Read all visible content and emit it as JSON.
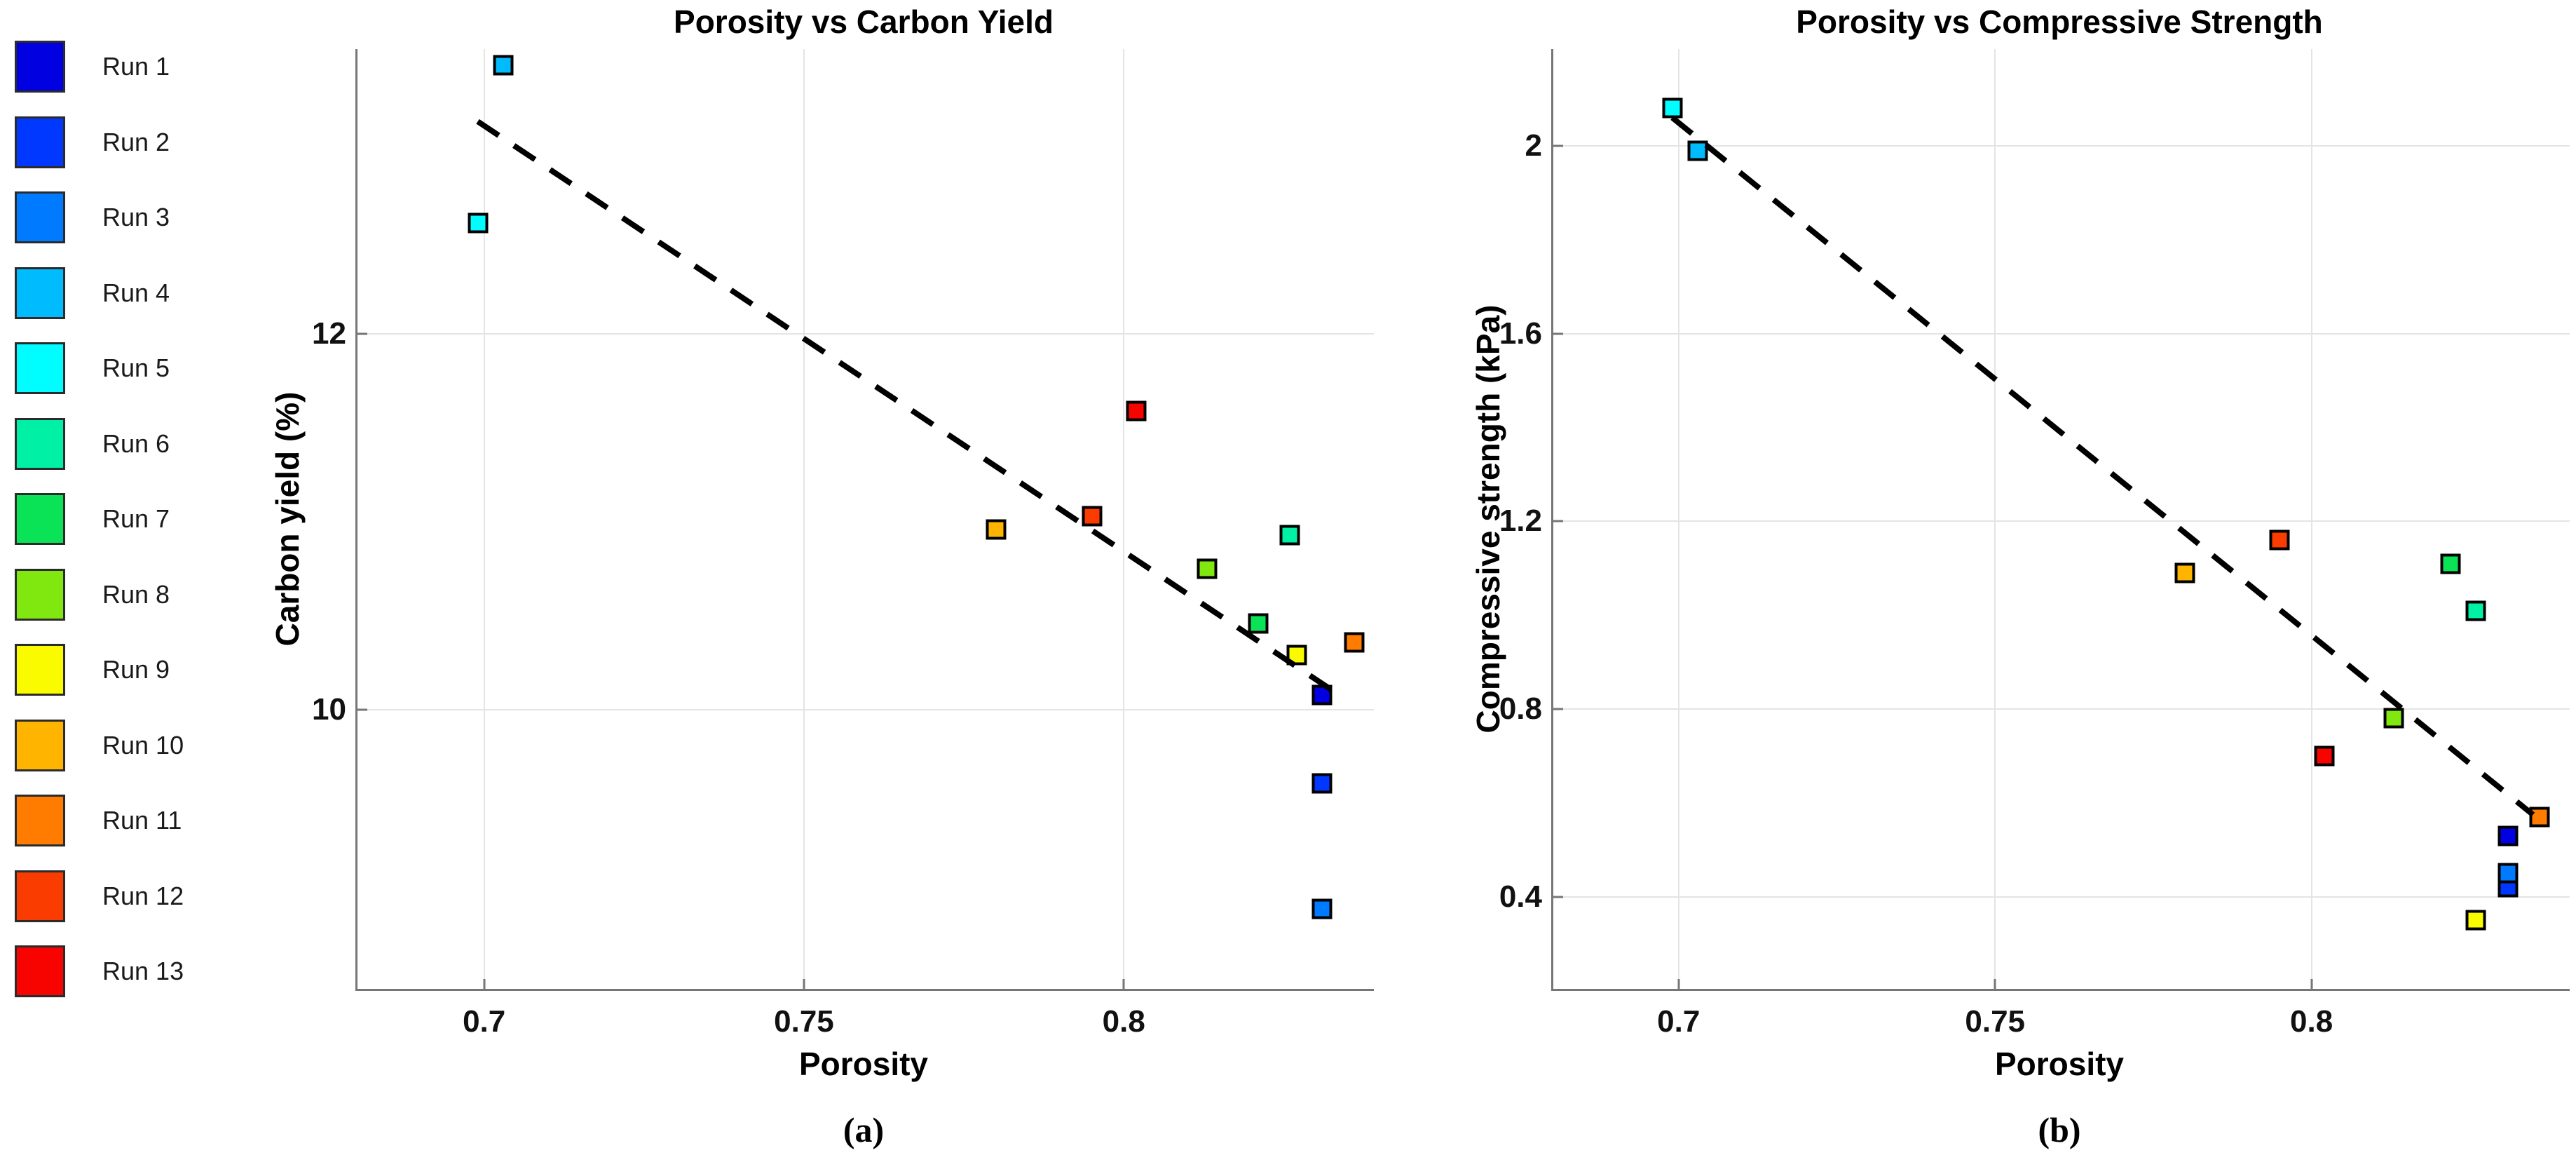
{
  "figure": {
    "background": "#ffffff",
    "axis_color": "#767676",
    "grid_color": "#e4e4e4",
    "trend_color": "#000000"
  },
  "legend": {
    "items": [
      {
        "label": "Run 1",
        "color": "#0000e1"
      },
      {
        "label": "Run 2",
        "color": "#0038ff"
      },
      {
        "label": "Run 3",
        "color": "#007bff"
      },
      {
        "label": "Run 4",
        "color": "#00bcff"
      },
      {
        "label": "Run 5",
        "color": "#00fdff"
      },
      {
        "label": "Run 6",
        "color": "#00f1a5"
      },
      {
        "label": "Run 7",
        "color": "#0be356"
      },
      {
        "label": "Run 8",
        "color": "#80e80f"
      },
      {
        "label": "Run 9",
        "color": "#fbfb00"
      },
      {
        "label": "Run 10",
        "color": "#ffb500"
      },
      {
        "label": "Run 11",
        "color": "#ff7c00"
      },
      {
        "label": "Run 12",
        "color": "#fb3c00"
      },
      {
        "label": "Run 13",
        "color": "#f80400"
      }
    ]
  },
  "chart_data": [
    {
      "type": "scatter",
      "panel": "a",
      "title": "Porosity vs Carbon Yield",
      "xlabel": "Porosity",
      "ylabel": "Carbon yield (%)",
      "caption": "(a)",
      "xlim": [
        0.6802,
        0.8391
      ],
      "ylim": [
        8.515,
        13.515
      ],
      "xticks": [
        0.7,
        0.75,
        0.8
      ],
      "xtick_labels": [
        "0.7",
        "0.75",
        "0.8"
      ],
      "yticks": [
        10,
        12
      ],
      "ytick_labels": [
        "10",
        "12"
      ],
      "grid": true,
      "trend": {
        "style": "dashed",
        "x1": 0.699,
        "y1": 13.13,
        "x2": 0.8345,
        "y2": 10.06
      },
      "points": [
        {
          "name": "Run 1",
          "x": 0.831,
          "y": 10.08,
          "color": "#0000e1"
        },
        {
          "name": "Run 2",
          "x": 0.831,
          "y": 9.61,
          "color": "#0038ff"
        },
        {
          "name": "Run 3",
          "x": 0.831,
          "y": 8.94,
          "color": "#007bff"
        },
        {
          "name": "Run 4",
          "x": 0.703,
          "y": 13.43,
          "color": "#00bcff"
        },
        {
          "name": "Run 5",
          "x": 0.699,
          "y": 12.59,
          "color": "#00fdff"
        },
        {
          "name": "Run 6",
          "x": 0.826,
          "y": 10.93,
          "color": "#00f1a5"
        },
        {
          "name": "Run 7",
          "x": 0.821,
          "y": 10.46,
          "color": "#0be356"
        },
        {
          "name": "Run 8",
          "x": 0.813,
          "y": 10.75,
          "color": "#80e80f"
        },
        {
          "name": "Run 9",
          "x": 0.827,
          "y": 10.29,
          "color": "#fbfb00"
        },
        {
          "name": "Run 10",
          "x": 0.78,
          "y": 10.96,
          "color": "#ffb500"
        },
        {
          "name": "Run 11",
          "x": 0.836,
          "y": 10.36,
          "color": "#ff7c00"
        },
        {
          "name": "Run 12",
          "x": 0.795,
          "y": 11.03,
          "color": "#fb3c00"
        },
        {
          "name": "Run 13",
          "x": 0.802,
          "y": 11.59,
          "color": "#f80400"
        }
      ]
    },
    {
      "type": "scatter",
      "panel": "b",
      "title": "Porosity vs Compressive Strength",
      "xlabel": "Porosity",
      "ylabel": "Compressive strength (kPa)",
      "caption": "(b)",
      "xlim": [
        0.6802,
        0.8408
      ],
      "ylim": [
        0.204,
        2.206
      ],
      "xticks": [
        0.7,
        0.75,
        0.8
      ],
      "xtick_labels": [
        "0.7",
        "0.75",
        "0.8"
      ],
      "yticks": [
        0.4,
        0.8,
        1.2,
        1.6,
        2
      ],
      "ytick_labels": [
        "0.4",
        "0.8",
        "1.2",
        "1.6",
        "2"
      ],
      "grid": true,
      "trend": {
        "style": "dashed",
        "x1": 0.699,
        "y1": 2.06,
        "x2": 0.835,
        "y2": 0.575
      },
      "points": [
        {
          "name": "Run 1",
          "x": 0.831,
          "y": 0.53,
          "color": "#0000e1"
        },
        {
          "name": "Run 2",
          "x": 0.831,
          "y": 0.42,
          "color": "#0038ff"
        },
        {
          "name": "Run 3",
          "x": 0.831,
          "y": 0.45,
          "color": "#007bff"
        },
        {
          "name": "Run 4",
          "x": 0.703,
          "y": 1.99,
          "color": "#00bcff"
        },
        {
          "name": "Run 5",
          "x": 0.699,
          "y": 2.08,
          "color": "#00fdff"
        },
        {
          "name": "Run 6",
          "x": 0.826,
          "y": 1.01,
          "color": "#00f1a5"
        },
        {
          "name": "Run 7",
          "x": 0.822,
          "y": 1.11,
          "color": "#0be356"
        },
        {
          "name": "Run 8",
          "x": 0.813,
          "y": 0.78,
          "color": "#80e80f"
        },
        {
          "name": "Run 9",
          "x": 0.826,
          "y": 0.35,
          "color": "#fbfb00"
        },
        {
          "name": "Run 10",
          "x": 0.78,
          "y": 1.09,
          "color": "#ffb500"
        },
        {
          "name": "Run 11",
          "x": 0.836,
          "y": 0.57,
          "color": "#ff7c00"
        },
        {
          "name": "Run 12",
          "x": 0.795,
          "y": 1.16,
          "color": "#fb3c00"
        },
        {
          "name": "Run 13",
          "x": 0.802,
          "y": 0.7,
          "color": "#f80400"
        }
      ]
    }
  ]
}
